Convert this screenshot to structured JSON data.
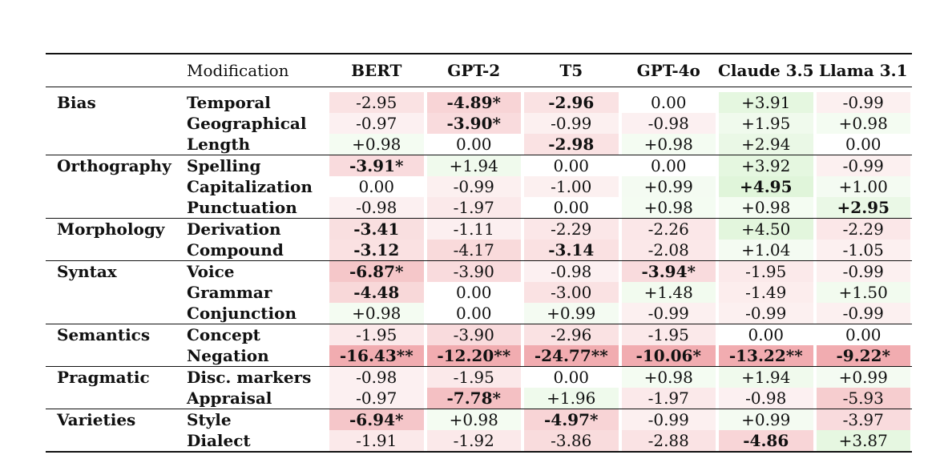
{
  "table": {
    "header": {
      "modification": "Modification",
      "models": [
        "BERT",
        "GPT-2",
        "T5",
        "GPT-4o",
        "Claude 3.5",
        "Llama 3.1"
      ]
    },
    "colors": {
      "negative": "#e8797f",
      "positive": "#9fe08c",
      "neutral": "#ffffff"
    },
    "groups": [
      {
        "category": "Bias",
        "rows": [
          {
            "modification": "Temporal",
            "values": [
              "-2.95",
              "-4.89*",
              "-2.96",
              "0.00",
              "+3.91",
              "-0.99"
            ],
            "bold": [
              false,
              true,
              true,
              false,
              false,
              false
            ]
          },
          {
            "modification": "Geographical",
            "values": [
              "-0.97",
              "-3.90*",
              "-0.99",
              "-0.98",
              "+1.95",
              "+0.98"
            ],
            "bold": [
              false,
              true,
              false,
              false,
              false,
              false
            ]
          },
          {
            "modification": "Length",
            "values": [
              "+0.98",
              "0.00",
              "-2.98",
              "+0.98",
              "+2.94",
              "0.00"
            ],
            "bold": [
              false,
              false,
              true,
              false,
              false,
              false
            ]
          }
        ]
      },
      {
        "category": "Orthography",
        "rows": [
          {
            "modification": "Spelling",
            "values": [
              "-3.91*",
              "+1.94",
              "0.00",
              "0.00",
              "+3.92",
              "-0.99"
            ],
            "bold": [
              true,
              false,
              false,
              false,
              false,
              false
            ]
          },
          {
            "modification": "Capitalization",
            "values": [
              "0.00",
              "-0.99",
              "-1.00",
              "+0.99",
              "+4.95",
              "+1.00"
            ],
            "bold": [
              false,
              false,
              false,
              false,
              true,
              false
            ]
          },
          {
            "modification": "Punctuation",
            "values": [
              "-0.98",
              "-1.97",
              "0.00",
              "+0.98",
              "+0.98",
              "+2.95"
            ],
            "bold": [
              false,
              false,
              false,
              false,
              false,
              true
            ]
          }
        ]
      },
      {
        "category": "Morphology",
        "rows": [
          {
            "modification": "Derivation",
            "values": [
              "-3.41",
              "-1.11",
              "-2.29",
              "-2.26",
              "+4.50",
              "-2.29"
            ],
            "bold": [
              true,
              false,
              false,
              false,
              false,
              false
            ]
          },
          {
            "modification": "Compound",
            "values": [
              "-3.12",
              "-4.17",
              "-3.14",
              "-2.08",
              "+1.04",
              "-1.05"
            ],
            "bold": [
              true,
              false,
              true,
              false,
              false,
              false
            ]
          }
        ]
      },
      {
        "category": "Syntax",
        "rows": [
          {
            "modification": "Voice",
            "values": [
              "-6.87*",
              "-3.90",
              "-0.98",
              "-3.94*",
              "-1.95",
              "-0.99"
            ],
            "bold": [
              true,
              false,
              false,
              true,
              false,
              false
            ]
          },
          {
            "modification": "Grammar",
            "values": [
              "-4.48",
              "0.00",
              "-3.00",
              "+1.48",
              "-1.49",
              "+1.50"
            ],
            "bold": [
              true,
              false,
              false,
              false,
              false,
              false
            ]
          },
          {
            "modification": "Conjunction",
            "values": [
              "+0.98",
              "0.00",
              "+0.99",
              "-0.99",
              "-0.99",
              "-0.99"
            ],
            "bold": [
              false,
              false,
              false,
              false,
              false,
              false
            ]
          }
        ]
      },
      {
        "category": "Semantics",
        "rows": [
          {
            "modification": "Concept",
            "values": [
              "-1.95",
              "-3.90",
              "-2.96",
              "-1.95",
              "0.00",
              "0.00"
            ],
            "bold": [
              false,
              false,
              false,
              false,
              false,
              false
            ]
          },
          {
            "modification": "Negation",
            "values": [
              "-16.43**",
              "-12.20**",
              "-24.77**",
              "-10.06*",
              "-13.22**",
              "-9.22*"
            ],
            "bold": [
              true,
              true,
              true,
              true,
              true,
              true
            ]
          }
        ]
      },
      {
        "category": "Pragmatic",
        "rows": [
          {
            "modification": "Disc. markers",
            "values": [
              "-0.98",
              "-1.95",
              "0.00",
              "+0.98",
              "+1.94",
              "+0.99"
            ],
            "bold": [
              false,
              false,
              false,
              false,
              false,
              false
            ]
          },
          {
            "modification": "Appraisal",
            "values": [
              "-0.97",
              "-7.78*",
              "+1.96",
              "-1.97",
              "-0.98",
              "-5.93"
            ],
            "bold": [
              false,
              true,
              false,
              false,
              false,
              false
            ]
          }
        ]
      },
      {
        "category": "Varieties",
        "rows": [
          {
            "modification": "Style",
            "values": [
              "-6.94*",
              "+0.98",
              "-4.97*",
              "-0.99",
              "+0.99",
              "-3.97"
            ],
            "bold": [
              true,
              false,
              true,
              false,
              false,
              false
            ]
          },
          {
            "modification": "Dialect",
            "values": [
              "-1.91",
              "-1.92",
              "-3.86",
              "-2.88",
              "-4.86",
              "+3.87"
            ],
            "bold": [
              false,
              false,
              false,
              false,
              true,
              false
            ]
          }
        ]
      }
    ]
  }
}
